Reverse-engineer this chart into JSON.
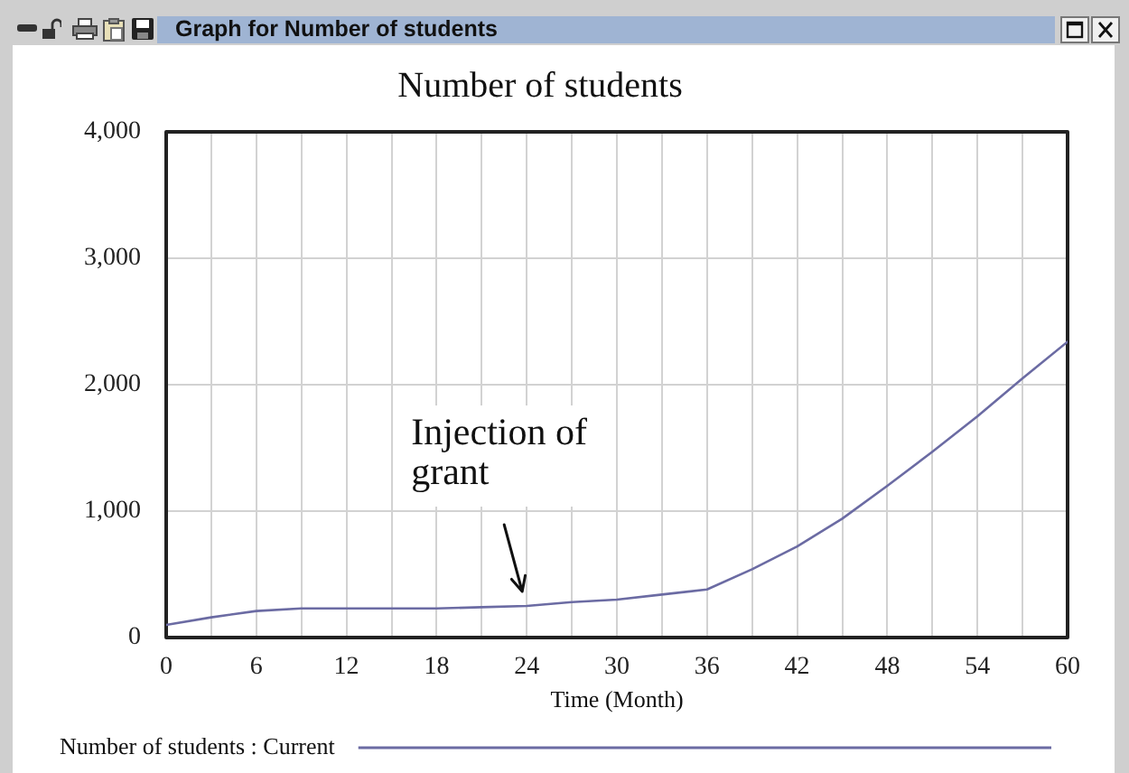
{
  "chart_data": {
    "type": "line",
    "title": "Number of students",
    "xlabel": "Time (Month)",
    "x": [
      0,
      3,
      6,
      9,
      12,
      15,
      18,
      21,
      24,
      27,
      30,
      33,
      36,
      39,
      42,
      45,
      48,
      51,
      54,
      57,
      60
    ],
    "series": [
      {
        "name": "Number of students : Current",
        "color": "#6b6ba3",
        "values": [
          100,
          160,
          210,
          230,
          230,
          230,
          230,
          240,
          250,
          280,
          300,
          340,
          380,
          540,
          720,
          940,
          1200,
          1470,
          1750,
          2050,
          2340
        ]
      }
    ],
    "xlim": [
      0,
      60
    ],
    "xticks": [
      0,
      {
        "value": 3,
        "label": null
      },
      6,
      {
        "value": 9,
        "label": null
      },
      12,
      {
        "value": 15,
        "label": null
      },
      18,
      {
        "value": 21,
        "label": null
      },
      24,
      {
        "value": 27,
        "label": null
      },
      30,
      {
        "value": 33,
        "label": null
      },
      36,
      {
        "value": 39,
        "label": null
      },
      42,
      {
        "value": 45,
        "label": null
      },
      48,
      {
        "value": 51,
        "label": null
      },
      54,
      {
        "value": 57,
        "label": null
      },
      60
    ],
    "ylim": [
      0,
      4000
    ],
    "yticks": [
      0,
      {
        "value": 1000,
        "label": "1,000"
      },
      {
        "value": 2000,
        "label": "2,000"
      },
      {
        "value": 3000,
        "label": "3,000"
      },
      {
        "value": 4000,
        "label": "4,000"
      }
    ],
    "grid": true,
    "legend": "bottom",
    "annotations": [
      {
        "text": "Injection of\ngrant",
        "x": 24,
        "y": 250
      },
      "Graph for Number of students"
    ]
  }
}
